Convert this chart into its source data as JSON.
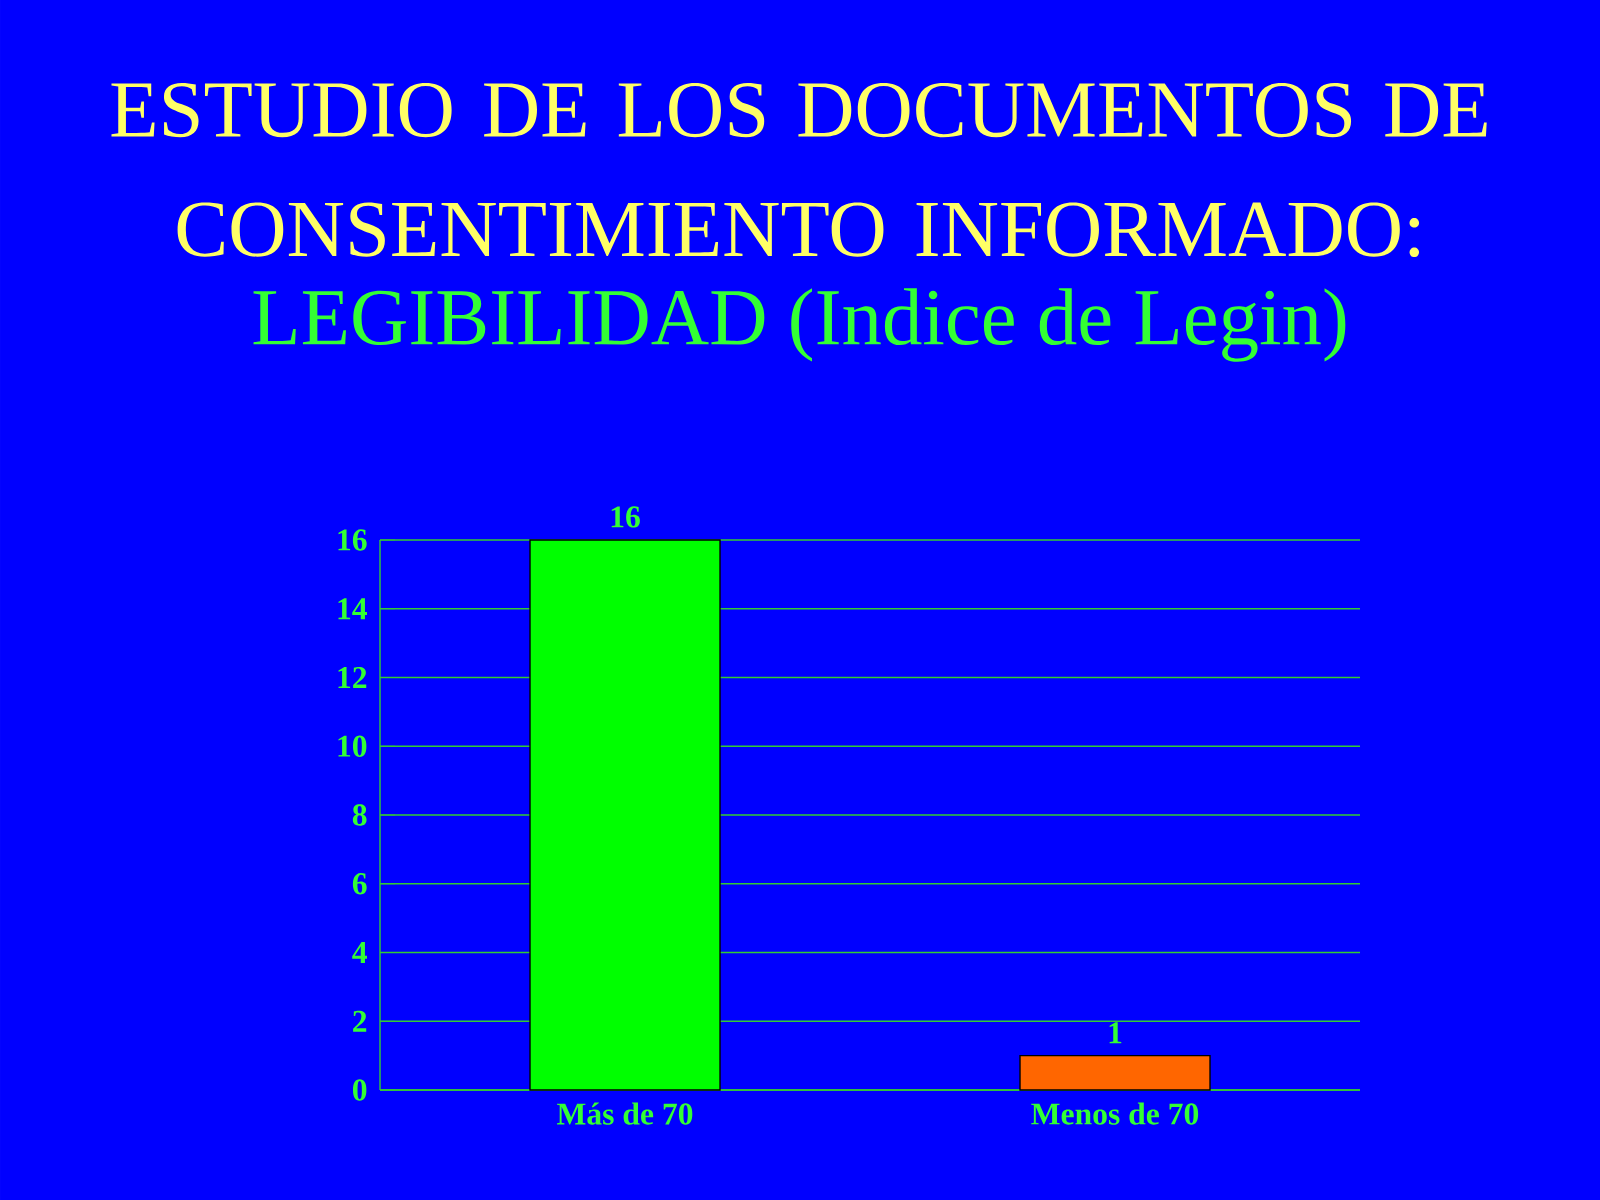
{
  "chart_data": {
    "type": "bar",
    "title": "ESTUDIO DE LOS DOCUMENTOS DE CONSENTIMIENTO INFORMADO:",
    "subtitle": "LEGIBILIDAD (Indice de Legin)",
    "categories": [
      "Más de 70",
      "Menos de 70"
    ],
    "values": [
      16,
      1
    ],
    "colors": [
      "#00ff00",
      "#ff6600"
    ],
    "ylim": [
      0,
      16
    ],
    "yticks": [
      0,
      2,
      4,
      6,
      8,
      10,
      12,
      14,
      16
    ],
    "grid": "y",
    "data_labels": true
  }
}
